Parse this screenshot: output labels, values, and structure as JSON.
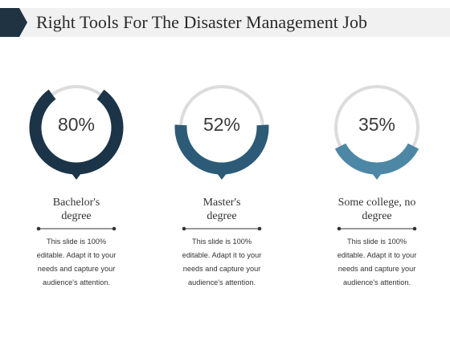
{
  "header": {
    "title": "Right Tools For The Disaster Management Job"
  },
  "colors": {
    "gauge_1": "#1b3447",
    "gauge_2": "#2c5b78",
    "gauge_3": "#4d87a6",
    "track": "#dcdcdc",
    "title_accent": "#1f3343"
  },
  "items": [
    {
      "percent_label": "80%",
      "percent": 80,
      "label_line1": "Bachelor's",
      "label_line2": "degree",
      "desc_line1": "This slide is 100%",
      "desc_line2": "editable. Adapt it to your",
      "desc_line3": "needs and capture your",
      "desc_line4": "audience's attention."
    },
    {
      "percent_label": "52%",
      "percent": 52,
      "label_line1": "Master's",
      "label_line2": "degree",
      "desc_line1": "This slide is 100%",
      "desc_line2": "editable. Adapt it to your",
      "desc_line3": "needs and capture your",
      "desc_line4": "audience's attention."
    },
    {
      "percent_label": "35%",
      "percent": 35,
      "label_line1": "Some college, no",
      "label_line2": "degree",
      "desc_line1": "This slide is 100%",
      "desc_line2": "editable. Adapt it to your",
      "desc_line3": "needs and capture your",
      "desc_line4": "audience's attention."
    }
  ]
}
